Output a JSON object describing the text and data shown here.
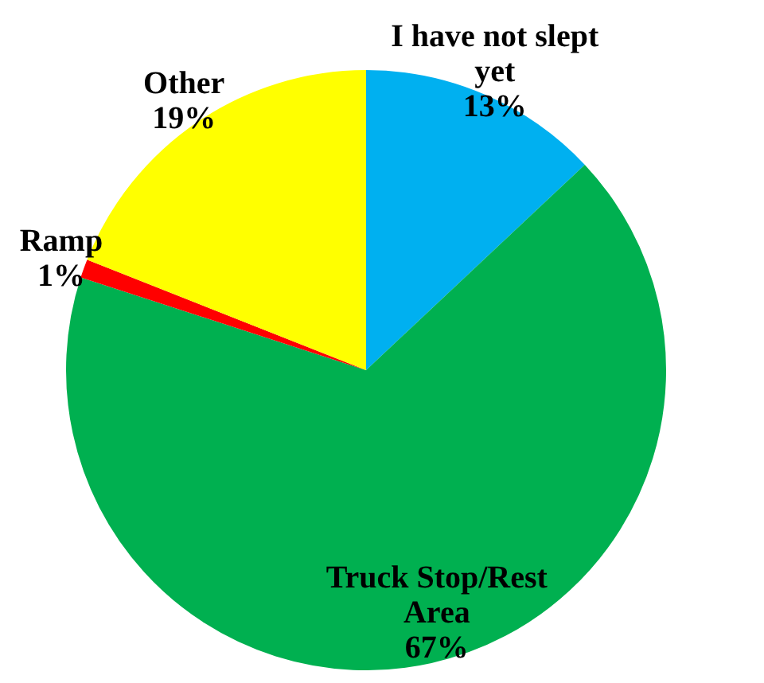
{
  "chart_data": {
    "type": "pie",
    "categories": [
      "I have not slept yet",
      "Truck Stop/Rest Area",
      "Ramp",
      "Other"
    ],
    "values": [
      13,
      67,
      1,
      19
    ],
    "value_labels": [
      "13%",
      "67%",
      "1%",
      "19%"
    ],
    "colors": [
      "#00b0f0",
      "#00b050",
      "#ff0000",
      "#ffff00"
    ],
    "legend": false
  }
}
